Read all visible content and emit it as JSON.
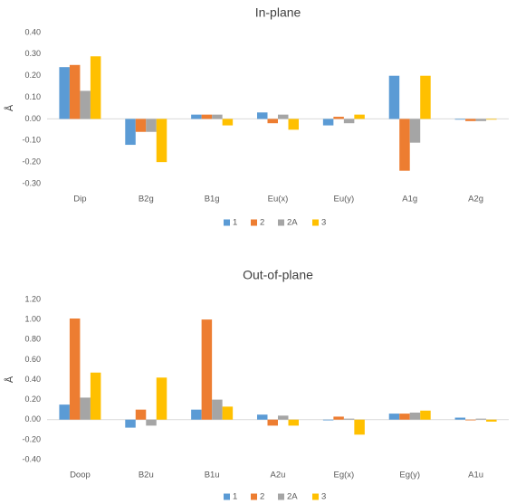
{
  "chart_data": [
    {
      "type": "bar",
      "title": "In-plane",
      "ylabel": "Å",
      "categories": [
        "Dip",
        "B2g",
        "B1g",
        "Eu(x)",
        "Eu(y)",
        "A1g",
        "A2g"
      ],
      "ylim": [
        -0.3,
        0.4
      ],
      "yticks": [
        0.4,
        0.3,
        0.2,
        0.1,
        0.0,
        -0.1,
        -0.2,
        -0.3
      ],
      "ytick_labels": [
        "0.40",
        "0.30",
        "0.20",
        "0.10",
        "0.00",
        "-0.10",
        "-0.20",
        "-0.30"
      ],
      "grid": false,
      "legend_position": "bottom",
      "series": [
        {
          "name": "1",
          "color": "#5B9BD5",
          "values": [
            0.24,
            -0.12,
            0.02,
            0.03,
            -0.03,
            0.2,
            0.0
          ]
        },
        {
          "name": "2",
          "color": "#ED7D31",
          "values": [
            0.25,
            -0.06,
            0.02,
            -0.02,
            0.01,
            -0.24,
            -0.01
          ]
        },
        {
          "name": "2A",
          "color": "#A5A5A5",
          "values": [
            0.13,
            -0.06,
            0.02,
            0.02,
            -0.02,
            -0.11,
            -0.01
          ]
        },
        {
          "name": "3",
          "color": "#FFC000",
          "values": [
            0.29,
            -0.2,
            -0.03,
            -0.05,
            0.02,
            0.2,
            0.0
          ]
        }
      ]
    },
    {
      "type": "bar",
      "title": "Out-of-plane",
      "ylabel": "Å",
      "categories": [
        "Doop",
        "B2u",
        "B1u",
        "A2u",
        "Eg(x)",
        "Eg(y)",
        "A1u"
      ],
      "ylim": [
        -0.4,
        1.2
      ],
      "yticks": [
        1.2,
        1.0,
        0.8,
        0.6,
        0.4,
        0.2,
        0.0,
        -0.2,
        -0.4
      ],
      "ytick_labels": [
        "1.20",
        "1.00",
        "0.80",
        "0.60",
        "0.40",
        "0.20",
        "0.00",
        "-0.20",
        "-0.40"
      ],
      "grid": false,
      "legend_position": "bottom",
      "series": [
        {
          "name": "1",
          "color": "#5B9BD5",
          "values": [
            0.15,
            -0.08,
            0.1,
            0.05,
            0.0,
            0.06,
            0.02
          ]
        },
        {
          "name": "2",
          "color": "#ED7D31",
          "values": [
            1.01,
            0.1,
            1.0,
            -0.06,
            0.03,
            0.06,
            0.0
          ]
        },
        {
          "name": "2A",
          "color": "#A5A5A5",
          "values": [
            0.22,
            -0.06,
            0.2,
            0.04,
            0.01,
            0.07,
            0.01
          ]
        },
        {
          "name": "3",
          "color": "#FFC000",
          "values": [
            0.47,
            0.42,
            0.13,
            -0.06,
            -0.15,
            0.09,
            -0.02
          ]
        }
      ]
    }
  ]
}
